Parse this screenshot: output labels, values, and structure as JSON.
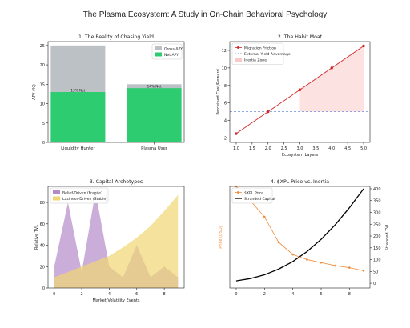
{
  "figure": {
    "title": "The Plasma Ecosystem: A Study in On-Chain Behavioral Psychology"
  },
  "chart_data": [
    {
      "id": "p1",
      "type": "bar",
      "title": "1. The Reality of Chasing Yield",
      "ylabel": "APY (%)",
      "xlabel": "",
      "categories": [
        "Liquidity Hunter",
        "Plasma User"
      ],
      "ylim": [
        0,
        26
      ],
      "yticks": [
        0,
        5,
        10,
        15,
        20,
        25
      ],
      "series": [
        {
          "name": "Gross APY",
          "values": [
            25,
            15
          ],
          "color": "#bcc1c6"
        },
        {
          "name": "Net APY",
          "values": [
            13,
            14
          ],
          "color": "#2ecc71"
        }
      ],
      "bar_labels": [
        "13% Net",
        "14% Net"
      ],
      "legend": "top-right",
      "grid": false
    },
    {
      "id": "p2",
      "type": "line",
      "title": "2. The Habit Moat",
      "xlabel": "Ecosystem Layers",
      "ylabel": "Perceived Cost/Reward",
      "x": [
        1,
        2,
        3,
        4,
        5
      ],
      "xlim": [
        0.8,
        5.2
      ],
      "ylim": [
        1.5,
        13
      ],
      "xticks": [
        1.0,
        1.5,
        2.0,
        2.5,
        3.0,
        3.5,
        4.0,
        4.5,
        5.0
      ],
      "yticks": [
        2,
        4,
        6,
        8,
        10,
        12
      ],
      "series": [
        {
          "name": "Migration Friction",
          "values": [
            2.5,
            5,
            7.5,
            10,
            12.5
          ],
          "color": "#d62728"
        },
        {
          "name": "External Yield Advantage",
          "constant": 5,
          "color": "#6b8fd6"
        }
      ],
      "shaded": {
        "name": "Inertia Zone",
        "x_from": 3,
        "x_to": 5,
        "color": "#fde2e2"
      },
      "legend": "top-left",
      "grid": false
    },
    {
      "id": "p3",
      "type": "area",
      "title": "3. Capital Archetypes",
      "xlabel": "Market Volatility Events",
      "ylabel": "Relative TVL",
      "x": [
        0,
        1,
        2,
        3,
        4,
        5,
        6,
        7,
        8,
        9
      ],
      "xlim": [
        -0.45,
        9.45
      ],
      "ylim": [
        0,
        95
      ],
      "xticks": [
        0,
        2,
        4,
        6,
        8
      ],
      "yticks": [
        0,
        20,
        40,
        60,
        80
      ],
      "series": [
        {
          "name": "Belief-Driven (Fragile)",
          "values": [
            20,
            80,
            15,
            90,
            20,
            10,
            40,
            10,
            20,
            10
          ],
          "color": "#b58ac9"
        },
        {
          "name": "Laziness-Driven (Stable)",
          "values": [
            10,
            15,
            20,
            25,
            30,
            38,
            47,
            58,
            72,
            87
          ],
          "color": "#f0d673"
        }
      ],
      "legend": "top-left",
      "grid": false
    },
    {
      "id": "p4",
      "type": "line",
      "title": "4. $XPL Price vs. Inertia",
      "xlabel": "",
      "ylabel": "Price (USD)",
      "ylabel_right": "Stranded TVL",
      "x": [
        0,
        1,
        2,
        3,
        4,
        5,
        6,
        7,
        8,
        9
      ],
      "xlim": [
        -0.45,
        9.45
      ],
      "ylim": [
        0,
        1
      ],
      "y2lim": [
        -20,
        410
      ],
      "xticks": [
        0,
        2,
        4,
        6,
        8
      ],
      "y2ticks": [
        0,
        50,
        100,
        150,
        200,
        250,
        300,
        350,
        400
      ],
      "series": [
        {
          "name": "$XPL Price",
          "axis": "left",
          "values": [
            1.0,
            0.86,
            0.7,
            0.45,
            0.33,
            0.28,
            0.25,
            0.22,
            0.2,
            0.17
          ],
          "color": "#f08c3a"
        },
        {
          "name": "Stranded Capital",
          "axis": "right",
          "values": [
            10,
            20,
            36,
            60,
            92,
            134,
            186,
            248,
            320,
            400
          ],
          "color": "#000000"
        }
      ],
      "legend": "top-left",
      "grid": false
    }
  ]
}
